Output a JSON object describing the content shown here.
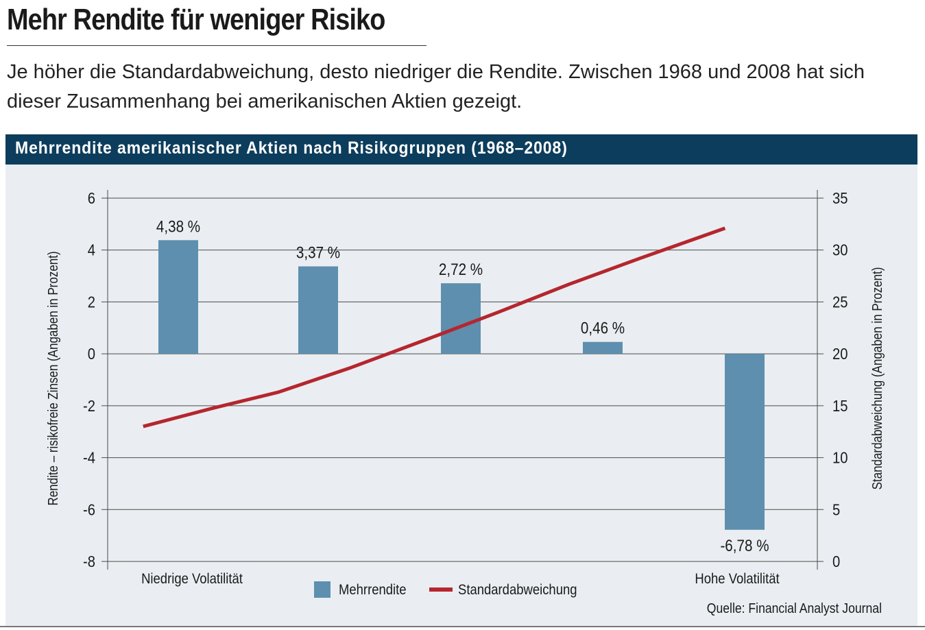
{
  "headline": "Mehr Rendite für weniger Risiko",
  "subtitle": "Je höher die Standardabweichung, desto niedriger die Rendite. Zwischen 1968 und 2008 hat sich dieser Zusammenhang bei amerikanischen Aktien gezeigt.",
  "chart_header": "Mehrrendite amerikanischer Aktien nach Risikogruppen (1968–2008)",
  "source": "Quelle: Financial Analyst Journal",
  "colors": {
    "bar": "#5e8fae",
    "line": "#b5262e",
    "header": "#0d3d5c",
    "panel": "#eaeef2"
  },
  "chart_data": {
    "type": "bar",
    "title": "Mehrrendite amerikanischer Aktien nach Risikogruppen (1968–2008)",
    "ylabel": "Rendite – risikofreie Zinsen (Angaben in Prozent)",
    "y2label": "Standardabweichung (Angaben in Prozent)",
    "ylim": [
      -8,
      6
    ],
    "yticks": [
      "6",
      "4",
      "2",
      "0",
      "-2",
      "-4",
      "-6",
      "-8"
    ],
    "y2lim": [
      0,
      35
    ],
    "y2ticks": [
      "35",
      "30",
      "25",
      "20",
      "15",
      "10",
      "5",
      "0"
    ],
    "x_start_label": "Niedrige Volatilität",
    "x_end_label": "Hohe Volatilität",
    "legend_placement": "bottom-center",
    "grid": true,
    "bars": {
      "name": "Mehrrendite",
      "values": [
        4.38,
        3.37,
        2.72,
        0.46,
        -6.78
      ],
      "labels": [
        "4,38 %",
        "3,37 %",
        "2,72 %",
        "0,46 %",
        "-6,78 %"
      ]
    },
    "line": {
      "name": "Standardabweichung",
      "points": [
        [
          0.5,
          13.0
        ],
        [
          1.5,
          14.8
        ],
        [
          2.4,
          16.3
        ],
        [
          3.4,
          18.6
        ],
        [
          4.5,
          21.4
        ],
        [
          5.5,
          24.0
        ],
        [
          6.5,
          26.7
        ],
        [
          7.5,
          29.2
        ],
        [
          8.7,
          32.1
        ]
      ]
    }
  }
}
